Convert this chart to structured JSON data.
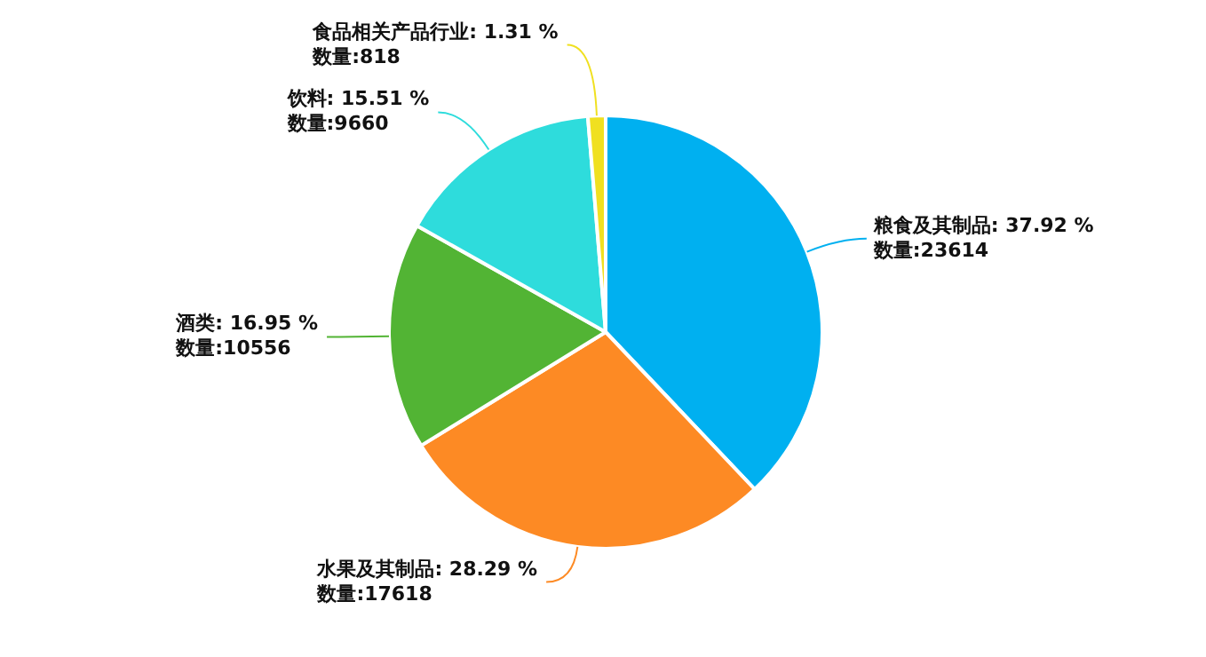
{
  "chart_data": {
    "type": "pie",
    "categories": [
      "粮食及其制品",
      "水果及其制品",
      "酒类",
      "饮料",
      "食品相关产品行业"
    ],
    "values": [
      23614,
      17618,
      10556,
      9660,
      818
    ],
    "value_labels": [
      "37.92 %\n数量:23614",
      "28.29 %\n数量:17618",
      "16.95 %\n数量:10556",
      "15.51 %\n数量:9660",
      "1.31 %\n数量:818"
    ],
    "colors": [
      "#00b0f0",
      "#fd8a24",
      "#52b434",
      "#2edcdc",
      "#f0e020"
    ],
    "legend": false
  }
}
